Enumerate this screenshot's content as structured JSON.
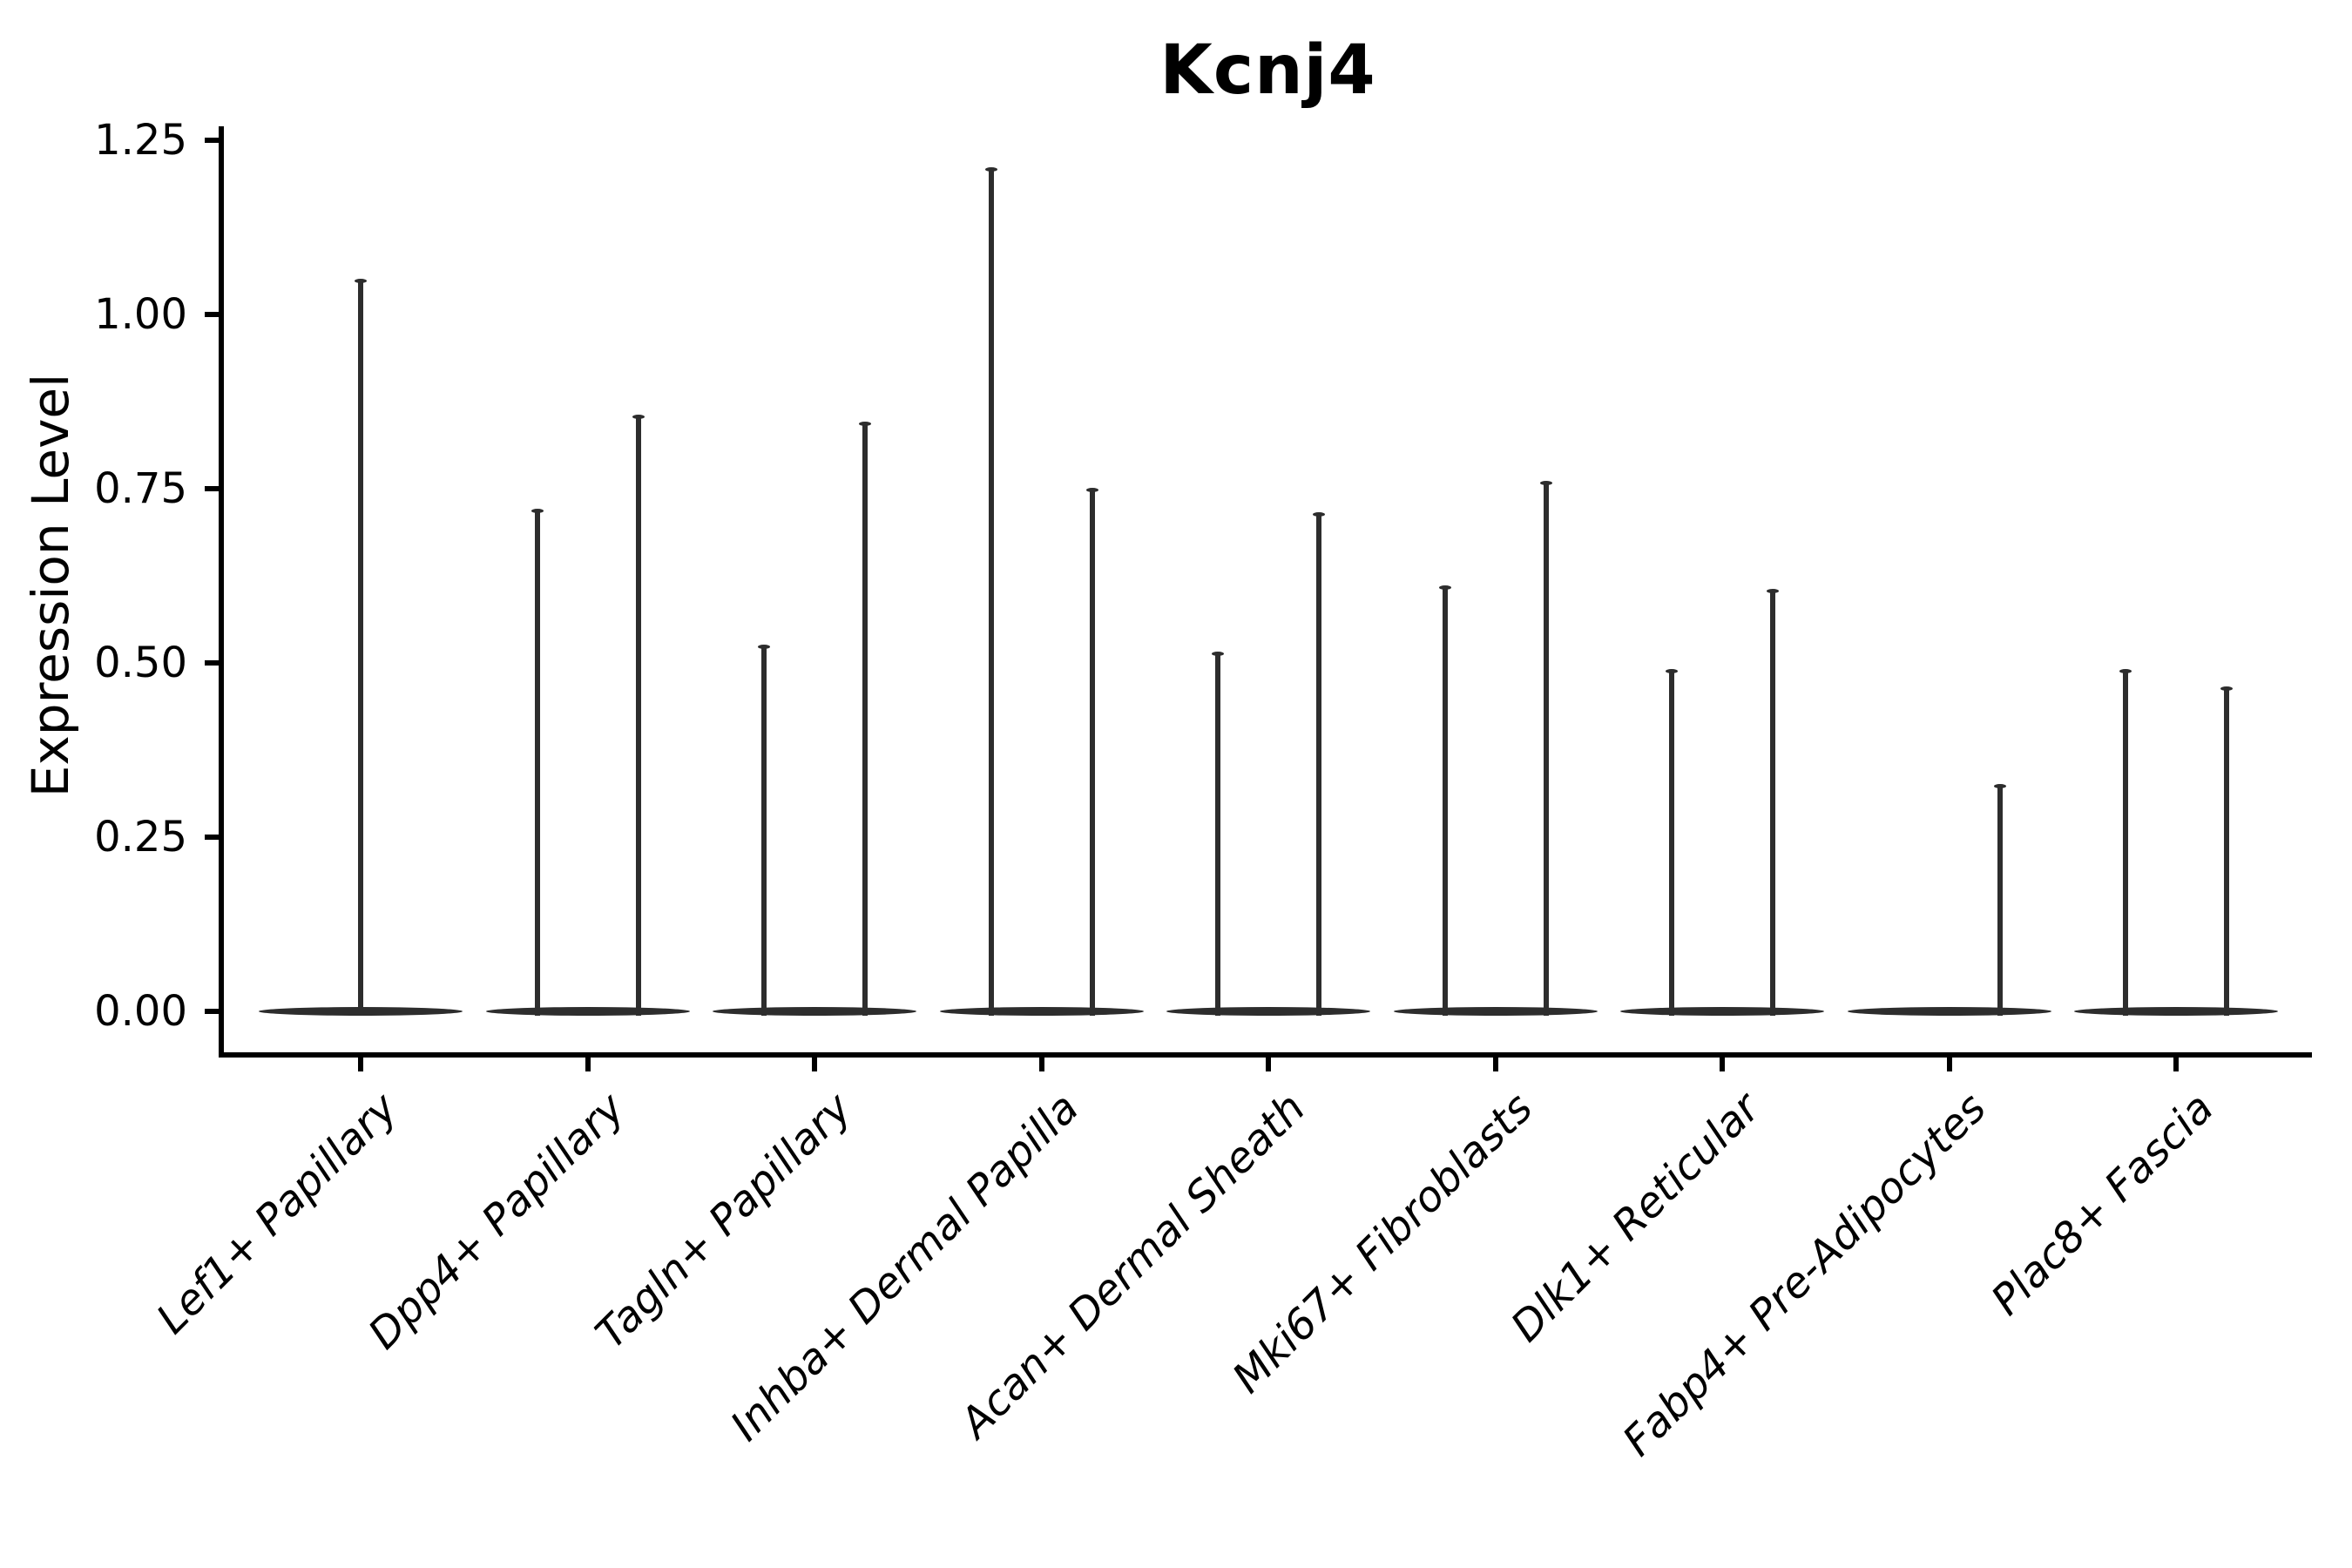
{
  "figure": {
    "title": "Kcnj4",
    "y_axis_label": "Expression Level"
  },
  "colors": {
    "background": "#ffffff",
    "axis": "#000000",
    "violin": "#2d2d2d",
    "text": "#000000"
  },
  "chart_data": {
    "type": "violin",
    "title": "Kcnj4",
    "xlabel": "",
    "ylabel": "Expression Level",
    "ylim": [
      -0.06,
      1.27
    ],
    "yticks": [
      "0.00",
      "0.25",
      "0.50",
      "0.75",
      "1.00",
      "1.25"
    ],
    "ytick_values": [
      0,
      0.25,
      0.5,
      0.75,
      1.0,
      1.25
    ],
    "grid": false,
    "legend": "none",
    "note": "Each cell type shows a flat violin at 0 (most cells do not express Kcnj4) with thin density spikes rising to the maximum expression value of the rare expressing cells.",
    "categories": [
      "Lef1+ Papillary",
      "Dpp4+ Papillary",
      "Tagln+ Papillary",
      "Inhba+ Dermal Papilla",
      "Acan+ Dermal Sheath",
      "Mki67+ Fibroblasts",
      "Dlk1+ Reticular",
      "Fabp4+ Pre-Adipocytes",
      "Plac8+ Fascia"
    ],
    "series": [
      {
        "category": "Lef1+ Papillary",
        "baseline": 0,
        "spikes": [
          {
            "group": "center",
            "max": 1.05
          }
        ]
      },
      {
        "category": "Dpp4+ Papillary",
        "baseline": 0,
        "spikes": [
          {
            "group": "left",
            "max": 0.72
          },
          {
            "group": "right",
            "max": 0.855
          }
        ]
      },
      {
        "category": "Tagln+ Papillary",
        "baseline": 0,
        "spikes": [
          {
            "group": "left",
            "max": 0.525
          },
          {
            "group": "right",
            "max": 0.845
          }
        ]
      },
      {
        "category": "Inhba+ Dermal Papilla",
        "baseline": 0,
        "spikes": [
          {
            "group": "left",
            "max": 1.21
          },
          {
            "group": "right",
            "max": 0.75
          }
        ]
      },
      {
        "category": "Acan+ Dermal Sheath",
        "baseline": 0,
        "spikes": [
          {
            "group": "left",
            "max": 0.515
          },
          {
            "group": "right",
            "max": 0.715
          }
        ]
      },
      {
        "category": "Mki67+ Fibroblasts",
        "baseline": 0,
        "spikes": [
          {
            "group": "left",
            "max": 0.61
          },
          {
            "group": "right",
            "max": 0.76
          }
        ]
      },
      {
        "category": "Dlk1+ Reticular",
        "baseline": 0,
        "spikes": [
          {
            "group": "left",
            "max": 0.49
          },
          {
            "group": "right",
            "max": 0.605
          }
        ]
      },
      {
        "category": "Fabp4+ Pre-Adipocytes",
        "baseline": 0,
        "spikes": [
          {
            "group": "right",
            "max": 0.325
          }
        ]
      },
      {
        "category": "Plac8+ Fascia",
        "baseline": 0,
        "spikes": [
          {
            "group": "left",
            "max": 0.49
          },
          {
            "group": "right",
            "max": 0.465
          }
        ]
      }
    ]
  }
}
